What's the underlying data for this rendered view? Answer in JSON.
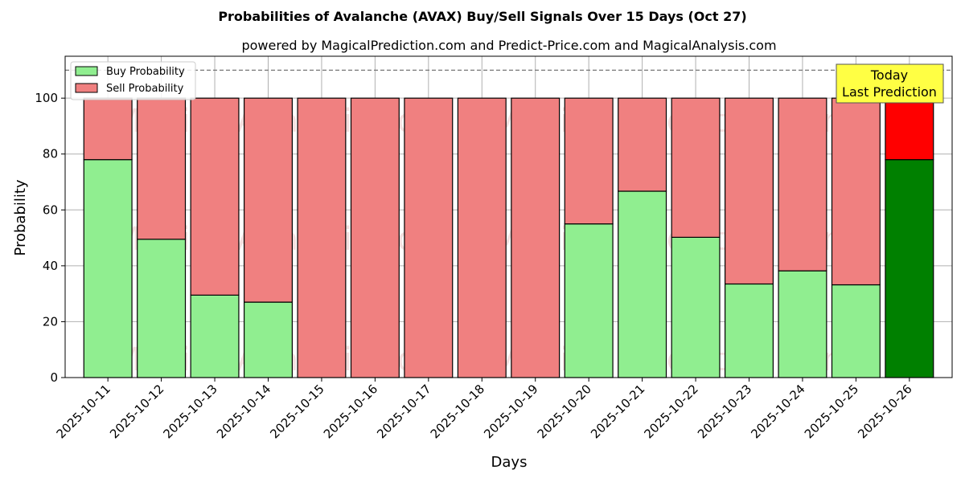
{
  "chart_data": {
    "type": "bar",
    "stacked": true,
    "title": "Probabilities of Avalanche (AVAX) Buy/Sell Signals Over 15 Days (Oct 27)",
    "subtitle": "powered by MagicalPrediction.com and Predict-Price.com and MagicalAnalysis.com",
    "xlabel": "Days",
    "ylabel": "Probability",
    "ylim": [
      0,
      115
    ],
    "yticks": [
      0,
      20,
      40,
      60,
      80,
      100
    ],
    "grid": true,
    "legend_position": "top-left",
    "reference_line": 110,
    "categories": [
      "2025-10-11",
      "2025-10-12",
      "2025-10-13",
      "2025-10-14",
      "2025-10-15",
      "2025-10-16",
      "2025-10-17",
      "2025-10-18",
      "2025-10-19",
      "2025-10-20",
      "2025-10-21",
      "2025-10-22",
      "2025-10-23",
      "2025-10-24",
      "2025-10-25",
      "2025-10-26"
    ],
    "series": [
      {
        "name": "Buy Probability",
        "color": "#90ee90",
        "highlight_color": "#008000",
        "values": [
          78,
          49.5,
          29.5,
          27,
          0,
          0,
          0,
          0,
          0,
          55,
          66.7,
          50.2,
          33.5,
          38.2,
          33.2,
          78
        ]
      },
      {
        "name": "Sell Probability",
        "color": "#f08080",
        "highlight_color": "#ff0000",
        "values": [
          22,
          50.5,
          70.5,
          73,
          100,
          100,
          100,
          100,
          100,
          45,
          33.3,
          49.8,
          66.5,
          61.8,
          66.8,
          22
        ]
      }
    ],
    "highlight_index": 15,
    "annotation": {
      "line1": "Today",
      "line2": "Last Prediction"
    },
    "watermarks": [
      "MagicalAnalysis.com",
      "MagicalPrediction.com"
    ]
  }
}
